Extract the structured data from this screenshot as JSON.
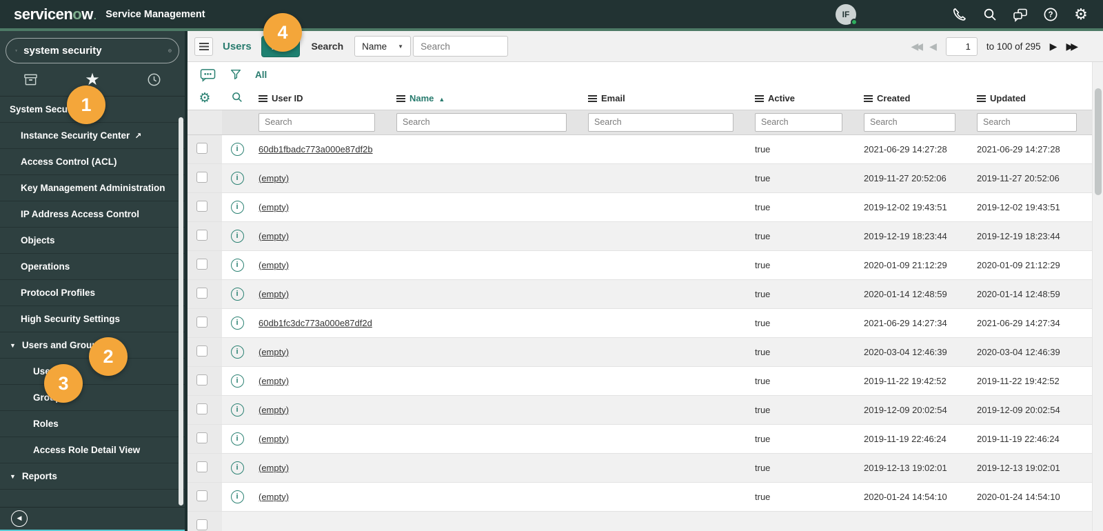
{
  "app": {
    "logo": {
      "pre": "servicen",
      "o": "o",
      "post": "w",
      "dot": "."
    },
    "product": "Service Management",
    "avatar_initials": "IF"
  },
  "sidebar": {
    "filter_value": "system security",
    "nav": [
      {
        "type": "section",
        "label": "System Security"
      },
      {
        "type": "link",
        "label": "Instance Security Center",
        "external": true
      },
      {
        "type": "link",
        "label": "Access Control (ACL)"
      },
      {
        "type": "link",
        "label": "Key Management Administration"
      },
      {
        "type": "link",
        "label": "IP Address Access Control"
      },
      {
        "type": "link",
        "label": "Objects"
      },
      {
        "type": "link",
        "label": "Operations"
      },
      {
        "type": "link",
        "label": "Protocol Profiles"
      },
      {
        "type": "link",
        "label": "High Security Settings"
      },
      {
        "type": "group",
        "label": "Users and Groups"
      },
      {
        "type": "sublink",
        "label": "Users"
      },
      {
        "type": "sublink",
        "label": "Groups"
      },
      {
        "type": "sublink",
        "label": "Roles"
      },
      {
        "type": "sublink",
        "label": "Access Role Detail View"
      },
      {
        "type": "group",
        "label": "Reports"
      }
    ]
  },
  "toolbar": {
    "title": "Users",
    "new_label": "New",
    "search_label": "Search",
    "search_column": "Name",
    "search_placeholder": "Search",
    "pagination": {
      "page": "1",
      "range": "to 100 of 295"
    }
  },
  "list": {
    "scope_label": "All",
    "filter_placeholder": "Search",
    "columns": [
      {
        "label": "User ID"
      },
      {
        "label": "Name",
        "sorted": "asc"
      },
      {
        "label": "Email"
      },
      {
        "label": "Active"
      },
      {
        "label": "Created"
      },
      {
        "label": "Updated"
      }
    ],
    "rows": [
      {
        "user_id": "60db1fbadc773a000e87df2b",
        "name": "",
        "email": "",
        "active": "true",
        "created": "2021-06-29 14:27:28",
        "updated": "2021-06-29 14:27:28"
      },
      {
        "user_id": "(empty)",
        "name": "",
        "email": "",
        "active": "true",
        "created": "2019-11-27 20:52:06",
        "updated": "2019-11-27 20:52:06"
      },
      {
        "user_id": "(empty)",
        "name": "",
        "email": "",
        "active": "true",
        "created": "2019-12-02 19:43:51",
        "updated": "2019-12-02 19:43:51"
      },
      {
        "user_id": "(empty)",
        "name": "",
        "email": "",
        "active": "true",
        "created": "2019-12-19 18:23:44",
        "updated": "2019-12-19 18:23:44"
      },
      {
        "user_id": "(empty)",
        "name": "",
        "email": "",
        "active": "true",
        "created": "2020-01-09 21:12:29",
        "updated": "2020-01-09 21:12:29"
      },
      {
        "user_id": "(empty)",
        "name": "",
        "email": "",
        "active": "true",
        "created": "2020-01-14 12:48:59",
        "updated": "2020-01-14 12:48:59"
      },
      {
        "user_id": "60db1fc3dc773a000e87df2d",
        "name": "",
        "email": "",
        "active": "true",
        "created": "2021-06-29 14:27:34",
        "updated": "2021-06-29 14:27:34"
      },
      {
        "user_id": "(empty)",
        "name": "",
        "email": "",
        "active": "true",
        "created": "2020-03-04 12:46:39",
        "updated": "2020-03-04 12:46:39"
      },
      {
        "user_id": "(empty)",
        "name": "",
        "email": "",
        "active": "true",
        "created": "2019-11-22 19:42:52",
        "updated": "2019-11-22 19:42:52"
      },
      {
        "user_id": "(empty)",
        "name": "",
        "email": "",
        "active": "true",
        "created": "2019-12-09 20:02:54",
        "updated": "2019-12-09 20:02:54"
      },
      {
        "user_id": "(empty)",
        "name": "",
        "email": "",
        "active": "true",
        "created": "2019-11-19 22:46:24",
        "updated": "2019-11-19 22:46:24"
      },
      {
        "user_id": "(empty)",
        "name": "",
        "email": "",
        "active": "true",
        "created": "2019-12-13 19:02:01",
        "updated": "2019-12-13 19:02:01"
      },
      {
        "user_id": "(empty)",
        "name": "",
        "email": "",
        "active": "true",
        "created": "2020-01-24 14:54:10",
        "updated": "2020-01-24 14:54:10"
      },
      {
        "user_id": "",
        "name": "",
        "email": "",
        "active": "",
        "created": "",
        "updated": "",
        "partial": true
      }
    ]
  },
  "badges": [
    "1",
    "2",
    "3",
    "4"
  ]
}
